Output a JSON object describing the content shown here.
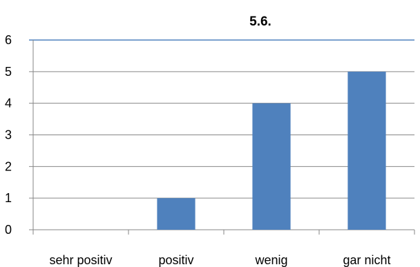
{
  "chart_data": {
    "type": "bar",
    "title": "5.6.",
    "categories": [
      "sehr positiv",
      "positiv",
      "wenig",
      "gar nicht"
    ],
    "values": [
      0,
      1,
      4,
      5
    ],
    "xlabel": "",
    "ylabel": "",
    "ylim": [
      0,
      6
    ],
    "yticks": [
      "0",
      "1",
      "2",
      "3",
      "4",
      "5",
      "6"
    ],
    "grid": true,
    "legend": "none",
    "colors": {
      "bar": "#4F81BD",
      "grid": "#868686",
      "axis": "#868686",
      "top_border": "#4F81BD"
    }
  }
}
